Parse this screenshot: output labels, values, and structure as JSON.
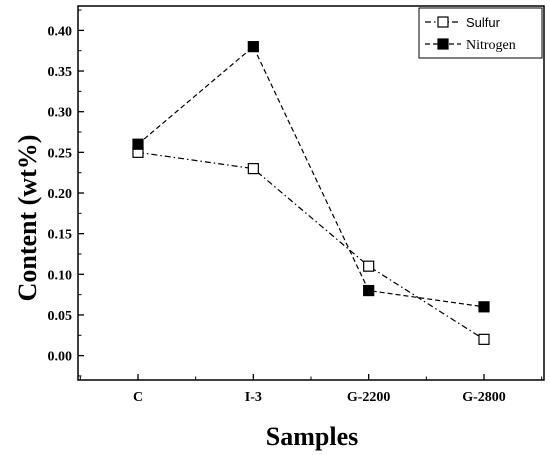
{
  "chart_data": {
    "type": "line",
    "categories": [
      "C",
      "I-3",
      "G-2200",
      "G-2800"
    ],
    "xlabel": "Samples",
    "ylabel": "Content (wt%)",
    "ylim": [
      -0.03,
      0.43
    ],
    "yticks": [
      "0.00",
      "0.05",
      "0.10",
      "0.15",
      "0.20",
      "0.25",
      "0.30",
      "0.35",
      "0.40"
    ],
    "legend_position": "top-right",
    "grid": false,
    "series": [
      {
        "name": "Sulfur",
        "values": [
          0.25,
          0.23,
          0.11,
          0.02
        ],
        "marker": "open-square",
        "line_style": "dash-dot",
        "color": "#000000"
      },
      {
        "name": "Nitrogen",
        "values": [
          0.26,
          0.38,
          0.08,
          0.06
        ],
        "marker": "filled-square",
        "line_style": "dashed",
        "color": "#000000"
      }
    ]
  }
}
